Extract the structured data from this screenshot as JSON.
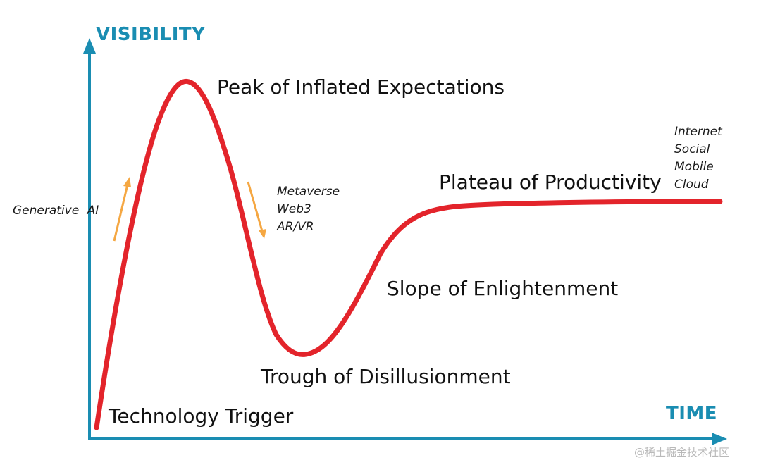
{
  "axes": {
    "y_label": "VISIBILITY",
    "x_label": "TIME",
    "color": "#1a8db2"
  },
  "curve": {
    "color": "#e3242b"
  },
  "phases": {
    "technology_trigger": "Technology Trigger",
    "peak": "Peak of Inflated Expectations",
    "trough": "Trough of Disillusionment",
    "slope": "Slope of Enlightenment",
    "plateau": "Plateau of Productivity"
  },
  "technologies": {
    "rising": [
      "Generative",
      "AI"
    ],
    "falling": [
      "Metaverse",
      "Web3",
      "AR/VR"
    ],
    "plateau": [
      "Internet",
      "Social",
      "Mobile",
      "Cloud"
    ]
  },
  "arrows": {
    "color": "#f5a742",
    "rising": "arrow-up-icon",
    "falling": "arrow-down-icon"
  },
  "watermark": "@稀土掘金技术社区"
}
